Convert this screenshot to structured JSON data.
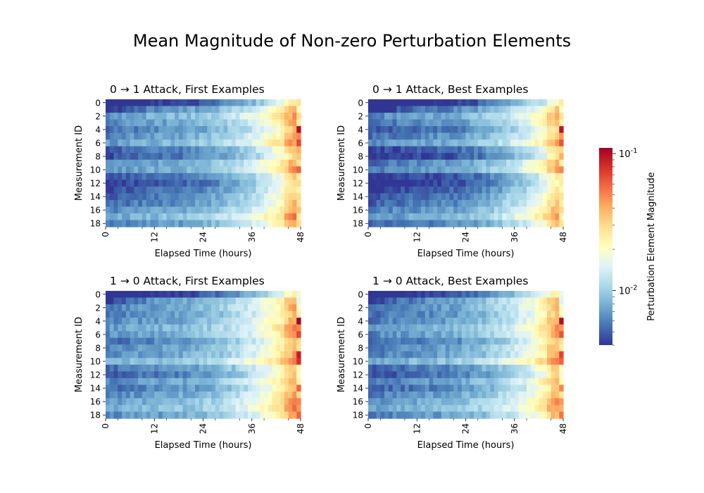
{
  "figure": {
    "suptitle": "Mean Magnitude of Non-zero Perturbation Elements"
  },
  "chart_data": {
    "type": "heatmap",
    "shared_axes": {
      "xlabel": "Elapsed Time (hours)",
      "ylabel": "Measurement ID",
      "xlim": [
        0,
        48
      ],
      "x_ticks": [
        "0",
        "12",
        "24",
        "36",
        "48"
      ],
      "y_ticks": [
        "0",
        "2",
        "4",
        "6",
        "8",
        "10",
        "12",
        "14",
        "16",
        "18"
      ],
      "n_measurements": 19,
      "n_time_steps": 48
    },
    "colorbar": {
      "label": "Perturbation Element Magnitude",
      "scale": "log",
      "range": [
        0.004,
        0.11
      ],
      "tick_labels": [
        "10^-2",
        "10^-1"
      ],
      "colormap_stops": [
        "#313695",
        "#4575b4",
        "#74add1",
        "#abd9e9",
        "#e0f3f8",
        "#ffffbf",
        "#fee090",
        "#fdae61",
        "#f46d43",
        "#d73027",
        "#a50026"
      ]
    },
    "panels": [
      {
        "title": "0 → 1 Attack, First Examples",
        "last_column": [
          0.028,
          0.022,
          0.03,
          0.026,
          0.1,
          0.05,
          0.07,
          0.04,
          0.035,
          0.028,
          0.06,
          0.025,
          0.03,
          0.024,
          0.03,
          0.028,
          0.035,
          0.026,
          0.03
        ],
        "row_base": [
          0.0045,
          0.007,
          0.0085,
          0.0075,
          0.0065,
          0.0075,
          0.0085,
          0.006,
          0.0055,
          0.0075,
          0.008,
          0.0055,
          0.005,
          0.0055,
          0.006,
          0.0065,
          0.0075,
          0.009,
          0.007
        ]
      },
      {
        "title": "0 → 1 Attack, Best Examples",
        "last_column": [
          0.026,
          0.02,
          0.028,
          0.024,
          0.095,
          0.045,
          0.065,
          0.03,
          0.04,
          0.025,
          0.05,
          0.024,
          0.026,
          0.022,
          0.028,
          0.025,
          0.03,
          0.024,
          0.028
        ],
        "row_base": [
          0.004,
          0.006,
          0.0075,
          0.0065,
          0.0055,
          0.0065,
          0.0075,
          0.005,
          0.0045,
          0.0065,
          0.007,
          0.0045,
          0.0042,
          0.0048,
          0.0055,
          0.006,
          0.007,
          0.008,
          0.006
        ]
      },
      {
        "title": "1 → 0 Attack, First Examples",
        "last_column": [
          0.018,
          0.016,
          0.02,
          0.024,
          0.11,
          0.05,
          0.07,
          0.03,
          0.028,
          0.09,
          0.08,
          0.022,
          0.02,
          0.024,
          0.06,
          0.03,
          0.05,
          0.045,
          0.06
        ],
        "row_base": [
          0.0045,
          0.0075,
          0.0075,
          0.007,
          0.0075,
          0.0085,
          0.008,
          0.0065,
          0.0075,
          0.0075,
          0.0095,
          0.0065,
          0.006,
          0.0075,
          0.0065,
          0.0075,
          0.0085,
          0.009,
          0.0075
        ]
      },
      {
        "title": "1 → 0 Attack, Best Examples",
        "last_column": [
          0.017,
          0.015,
          0.019,
          0.022,
          0.1,
          0.045,
          0.065,
          0.028,
          0.026,
          0.07,
          0.06,
          0.02,
          0.019,
          0.022,
          0.05,
          0.028,
          0.045,
          0.04,
          0.055
        ],
        "row_base": [
          0.0045,
          0.007,
          0.007,
          0.0065,
          0.007,
          0.008,
          0.0075,
          0.006,
          0.007,
          0.007,
          0.009,
          0.006,
          0.0055,
          0.007,
          0.006,
          0.007,
          0.008,
          0.0085,
          0.007
        ]
      }
    ]
  }
}
